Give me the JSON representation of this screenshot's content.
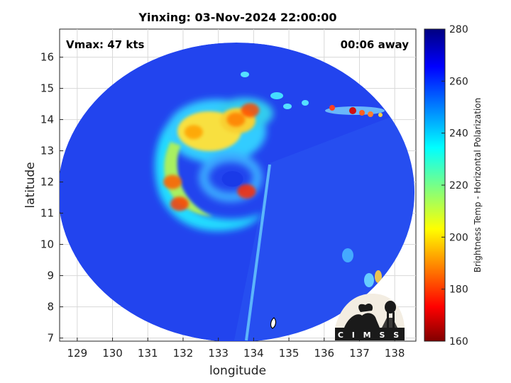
{
  "chart_data": {
    "type": "heatmap",
    "title": "Yinxing: 03-Nov-2024 22:00:00",
    "xlabel": "longitude",
    "ylabel": "latitude",
    "xlim": [
      128.5,
      138.6
    ],
    "ylim": [
      6.9,
      16.9
    ],
    "xticks": [
      129,
      130,
      131,
      132,
      133,
      134,
      135,
      136,
      137,
      138
    ],
    "yticks": [
      7,
      8,
      9,
      10,
      11,
      12,
      13,
      14,
      15,
      16
    ],
    "grid": true,
    "annotations": {
      "vmax": "Vmax: 47 kts",
      "time_offset": "00:06 away"
    },
    "colorbar": {
      "label": "Brightness Temp - Horizontal Polarization",
      "range": [
        160,
        280
      ],
      "ticks": [
        160,
        180,
        200,
        220,
        240,
        260,
        280
      ],
      "colormap": "jet"
    },
    "storm_center": [
      133.4,
      12.1
    ],
    "swath_edge": {
      "lat_top": 7.3,
      "lon_top": 134.5,
      "lat_bottom": 10.1,
      "lon_bottom": 133.3
    },
    "features": [
      {
        "name": "rainband-west",
        "lon": 131.7,
        "lat": 12.0,
        "tb": 184
      },
      {
        "name": "rainband-southwest",
        "lon": 131.9,
        "lat": 11.3,
        "tb": 180
      },
      {
        "name": "rainband-north",
        "lon": 132.3,
        "lat": 13.6,
        "tb": 192
      },
      {
        "name": "convection-northeast",
        "lon": 133.5,
        "lat": 14.0,
        "tb": 188
      },
      {
        "name": "convection-north",
        "lon": 133.9,
        "lat": 14.3,
        "tb": 182
      },
      {
        "name": "eyewall-east",
        "lon": 133.8,
        "lat": 11.7,
        "tb": 178
      },
      {
        "name": "band-east-far",
        "lon": 137.0,
        "lat": 14.3,
        "tb": 190
      },
      {
        "name": "band-southeast",
        "lon": 137.6,
        "lat": 9.1,
        "tb": 200
      }
    ],
    "background_tb": 262,
    "logo_text": "C I M S S"
  }
}
